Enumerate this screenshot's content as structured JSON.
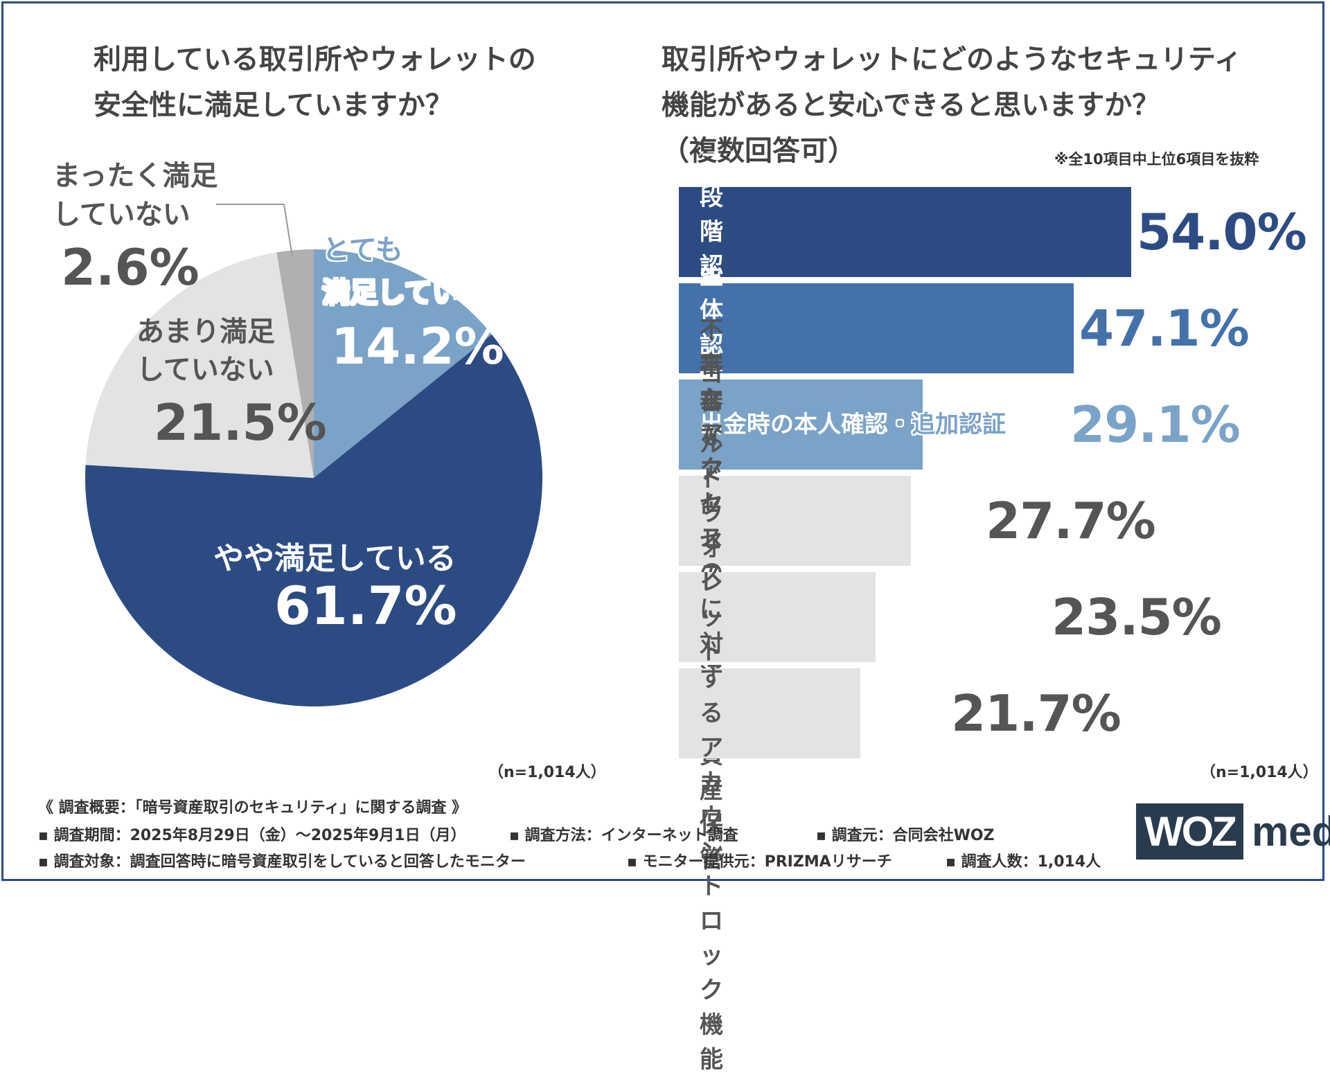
{
  "left": {
    "title_lines": [
      "利用している取引所やウォレットの",
      "安全性に満足していますか？"
    ],
    "n_label": "（n=1,014人）"
  },
  "right": {
    "title_lines": [
      "取引所やウォレットにどのようなセキュリティ",
      "機能があると安心できると思いますか？"
    ],
    "subtitle": "（複数回答可）",
    "note": "※全10項目中上位6項目を抜粋",
    "n_label": "（n=1,014人）"
  },
  "chart_data": [
    {
      "type": "pie",
      "slices": [
        {
          "label_lines": [
            "とても",
            "満足している"
          ],
          "value": 14.2,
          "value_label": "14.2%",
          "color": "#7ba3c7"
        },
        {
          "label_lines": [
            "やや満足している"
          ],
          "value": 61.7,
          "value_label": "61.7%",
          "color": "#2d4b83"
        },
        {
          "label_lines": [
            "あまり満足",
            "していない"
          ],
          "value": 21.5,
          "value_label": "21.5%",
          "color": "#e3e3e3"
        },
        {
          "label_lines": [
            "まったく満足",
            "していない"
          ],
          "value": 2.6,
          "value_label": "2.6%",
          "color": "#b0b0b0"
        }
      ]
    },
    {
      "type": "bar",
      "orientation": "horizontal",
      "categories": [
        "二段階認証",
        "生体認証",
        "出金時の本人確認・追加認証",
        "不審なアクセスの即時通知",
        "コールドウォレットでの資産保管",
        "不審なアクセスに対する\nアカウントロック機能"
      ],
      "values": [
        54.0,
        47.1,
        29.1,
        27.7,
        23.5,
        21.7
      ],
      "value_labels": [
        "54.0%",
        "47.1%",
        "29.1%",
        "27.7%",
        "23.5%",
        "21.7%"
      ],
      "bar_colors": [
        "#2d4b83",
        "#4571ab",
        "#7ba3c7",
        "#e3e3e3",
        "#e3e3e3",
        "#e3e3e3"
      ],
      "value_colors": [
        "#2d4b83",
        "#4571ab",
        "#7ba3c7",
        "#555555",
        "#555555",
        "#555555"
      ],
      "label_colors": [
        "#ffffff",
        "#ffffff",
        "#ffffff",
        "#555555",
        "#555555",
        "#555555"
      ]
    }
  ],
  "footer": {
    "heading": "《 調査概要：「暗号資産取引のセキュリティ」に関する調査 》",
    "items_row1": [
      "▪ 調査期間：2025年8月29日（金）〜2025年9月1日（月）",
      "▪ 調査方法：インターネット調査",
      "▪ 調査元：合同会社WOZ"
    ],
    "items_row2": [
      "▪ 調査対象：調査回答時に暗号資産取引をしていると回答したモニター",
      "▪ モニター提供元：PRIZMAリサーチ",
      "▪ 調査人数：1,014人"
    ]
  },
  "logo": {
    "box_text": "WOZ",
    "text": "media"
  }
}
